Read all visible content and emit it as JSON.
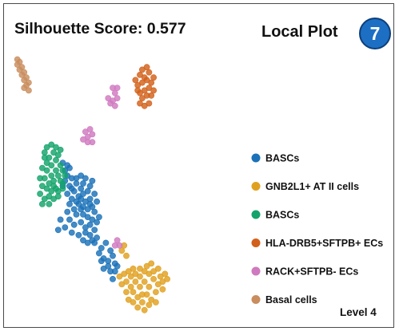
{
  "header": {
    "score_text": "Silhouette Score: 0.577",
    "title": "Local Plot",
    "badge": "7"
  },
  "footer": {
    "level": "Level 4"
  },
  "chart_data": {
    "type": "scatter",
    "title": "Local Plot",
    "xlabel": "",
    "ylabel": "",
    "grid": false,
    "axes_visible": false,
    "legend_placement": "right",
    "xlim": [
      0,
      100
    ],
    "ylim": [
      0,
      100
    ],
    "series": [
      {
        "name": "BASCs",
        "color": "#1b72b8",
        "points": [
          [
            22,
            58
          ],
          [
            24,
            57
          ],
          [
            23,
            55
          ],
          [
            25,
            56
          ],
          [
            24,
            53
          ],
          [
            23,
            51
          ],
          [
            26,
            52
          ],
          [
            22,
            49
          ],
          [
            25,
            49
          ],
          [
            28,
            50
          ],
          [
            27,
            47
          ],
          [
            29,
            45
          ],
          [
            30,
            48
          ],
          [
            31,
            46
          ],
          [
            29,
            42
          ],
          [
            32,
            43
          ],
          [
            30,
            40
          ],
          [
            28,
            38
          ],
          [
            31,
            38
          ],
          [
            33,
            40
          ],
          [
            34,
            44
          ],
          [
            33,
            37
          ],
          [
            35,
            36
          ],
          [
            36,
            39
          ],
          [
            34,
            34
          ],
          [
            32,
            33
          ],
          [
            30,
            35
          ],
          [
            27,
            34
          ],
          [
            25,
            36
          ],
          [
            23,
            33
          ],
          [
            26,
            31
          ],
          [
            21,
            36
          ],
          [
            20,
            32
          ],
          [
            24,
            39
          ],
          [
            28,
            43
          ],
          [
            27,
            40
          ],
          [
            26,
            44
          ],
          [
            25,
            42
          ],
          [
            32,
            31
          ],
          [
            34,
            30
          ],
          [
            36,
            32
          ],
          [
            37,
            35
          ],
          [
            35,
            41
          ],
          [
            33,
            47
          ],
          [
            31,
            50
          ],
          [
            30,
            53
          ],
          [
            28,
            52
          ],
          [
            32,
            52
          ],
          [
            34,
            49
          ],
          [
            35,
            51
          ],
          [
            36,
            46
          ],
          [
            34,
            42
          ],
          [
            29,
            30
          ],
          [
            31,
            28
          ],
          [
            33,
            27
          ],
          [
            35,
            28
          ],
          [
            37,
            29
          ],
          [
            39,
            25
          ],
          [
            41,
            27
          ],
          [
            38,
            23
          ],
          [
            40,
            21
          ],
          [
            42,
            20
          ],
          [
            44,
            22
          ],
          [
            43,
            24
          ],
          [
            45,
            19
          ],
          [
            42,
            18
          ],
          [
            40,
            17
          ],
          [
            39,
            20
          ],
          [
            43,
            16
          ],
          [
            45,
            16
          ],
          [
            44,
            13
          ],
          [
            46,
            18
          ],
          [
            37,
            43
          ],
          [
            38,
            37
          ],
          [
            36,
            27
          ],
          [
            24,
            46
          ],
          [
            26,
            48
          ],
          [
            30,
            44
          ],
          [
            31,
            41
          ]
        ]
      },
      {
        "name": "GNB2L1+ AT II cells",
        "color": "#e0a01f",
        "points": [
          [
            48,
            24
          ],
          [
            50,
            22
          ],
          [
            49,
            26
          ],
          [
            47,
            14
          ],
          [
            49,
            15
          ],
          [
            51,
            16
          ],
          [
            52,
            14
          ],
          [
            50,
            12
          ],
          [
            48,
            11
          ],
          [
            50,
            8
          ],
          [
            52,
            10
          ],
          [
            54,
            12
          ],
          [
            53,
            8
          ],
          [
            55,
            6
          ],
          [
            57,
            7
          ],
          [
            56,
            10
          ],
          [
            58,
            12
          ],
          [
            54,
            15
          ],
          [
            56,
            14
          ],
          [
            58,
            16
          ],
          [
            60,
            15
          ],
          [
            62,
            13
          ],
          [
            60,
            10
          ],
          [
            59,
            7
          ],
          [
            61,
            5
          ],
          [
            63,
            8
          ],
          [
            64,
            11
          ],
          [
            65,
            14
          ],
          [
            66,
            12
          ],
          [
            67,
            15
          ],
          [
            68,
            13
          ],
          [
            66,
            9
          ],
          [
            62,
            16
          ],
          [
            57,
            4
          ],
          [
            53,
            4
          ],
          [
            51,
            5
          ],
          [
            59,
            18
          ],
          [
            64,
            17
          ],
          [
            61,
            19
          ],
          [
            56,
            17
          ],
          [
            55,
            2
          ],
          [
            58,
            1
          ],
          [
            60,
            3
          ],
          [
            53,
            17
          ],
          [
            63,
            4
          ]
        ]
      },
      {
        "name": "BASCs",
        "color": "#14a36a",
        "points": [
          [
            14,
            62
          ],
          [
            16,
            60
          ],
          [
            15,
            58
          ],
          [
            17,
            57
          ],
          [
            19,
            59
          ],
          [
            18,
            62
          ],
          [
            20,
            61
          ],
          [
            21,
            57
          ],
          [
            19,
            55
          ],
          [
            17,
            53
          ],
          [
            15,
            55
          ],
          [
            13,
            56
          ],
          [
            14,
            52
          ],
          [
            16,
            50
          ],
          [
            18,
            51
          ],
          [
            20,
            53
          ],
          [
            22,
            55
          ],
          [
            21,
            51
          ],
          [
            19,
            48
          ],
          [
            17,
            47
          ],
          [
            15,
            48
          ],
          [
            13,
            49
          ],
          [
            12,
            46
          ],
          [
            14,
            44
          ],
          [
            16,
            45
          ],
          [
            18,
            44
          ],
          [
            20,
            47
          ],
          [
            22,
            50
          ],
          [
            23,
            53
          ],
          [
            21,
            63
          ],
          [
            19,
            64
          ],
          [
            17,
            65
          ],
          [
            15,
            64
          ],
          [
            12,
            52
          ],
          [
            14,
            60
          ],
          [
            18,
            49
          ],
          [
            16,
            42
          ],
          [
            13,
            42
          ],
          [
            20,
            45
          ],
          [
            22,
            48
          ]
        ]
      },
      {
        "name": "HLA-DRB5+SFTPB+ ECs",
        "color": "#d2601a",
        "points": [
          [
            56,
            92
          ],
          [
            58,
            91
          ],
          [
            60,
            93
          ],
          [
            59,
            90
          ],
          [
            57,
            89
          ],
          [
            55,
            88
          ],
          [
            61,
            89
          ],
          [
            60,
            87
          ],
          [
            58,
            86
          ],
          [
            56,
            85
          ],
          [
            57,
            83
          ],
          [
            59,
            84
          ],
          [
            61,
            84
          ],
          [
            62,
            86
          ],
          [
            56,
            81
          ],
          [
            58,
            80
          ],
          [
            60,
            81
          ],
          [
            59,
            95
          ],
          [
            57,
            94
          ],
          [
            62,
            91
          ],
          [
            55,
            86
          ],
          [
            54,
            90
          ]
        ]
      },
      {
        "name": "RACK+SFTPB- ECs",
        "color": "#cf79bf",
        "points": [
          [
            44,
            87
          ],
          [
            45,
            85
          ],
          [
            46,
            83
          ],
          [
            44,
            82
          ],
          [
            42,
            83
          ],
          [
            43,
            81
          ],
          [
            45,
            80
          ],
          [
            46,
            87
          ],
          [
            33,
            68
          ],
          [
            35,
            69
          ],
          [
            34,
            71
          ],
          [
            32,
            70
          ],
          [
            31,
            67
          ],
          [
            33,
            66
          ],
          [
            35,
            66
          ],
          [
            46,
            28
          ],
          [
            47,
            26
          ],
          [
            45,
            26
          ]
        ]
      },
      {
        "name": "Basal cells",
        "color": "#c98d5e",
        "points": [
          [
            2,
            98
          ],
          [
            3,
            97
          ],
          [
            2,
            96
          ],
          [
            4,
            95
          ],
          [
            3,
            94
          ],
          [
            5,
            93
          ],
          [
            4,
            92
          ],
          [
            6,
            91
          ],
          [
            5,
            90
          ],
          [
            7,
            89
          ],
          [
            6,
            88
          ],
          [
            7,
            86
          ],
          [
            5,
            87
          ]
        ]
      }
    ]
  }
}
